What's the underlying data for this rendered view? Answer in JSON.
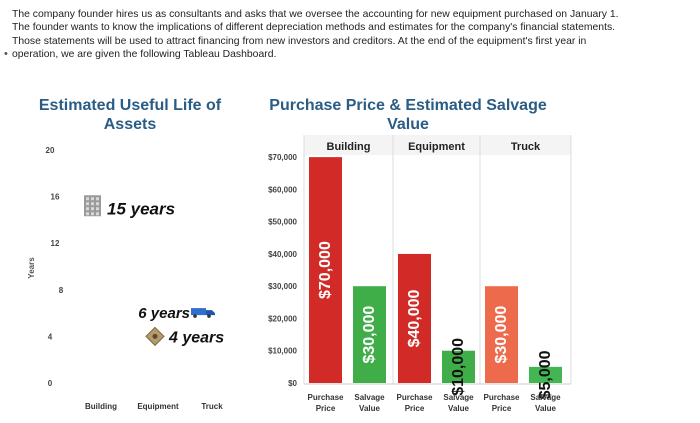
{
  "intro": {
    "lines": [
      "The company founder hires us as consultants and asks that we oversee the accounting for new equipment purchased on January 1.",
      "The founder wants to know the implications of different depreciation methods and estimates for the company's financial statements.",
      "Those statements will be used to attract financing from new investors and creditors. At the end of the equipment's first year in",
      "operation, we are given the following Tableau Dashboard."
    ]
  },
  "chart_data": [
    {
      "type": "scatter",
      "title_lines": [
        "Estimated Useful Life of",
        "Assets"
      ],
      "ylabel": "Years",
      "ylim": [
        0,
        20
      ],
      "yticks": [
        0,
        4,
        8,
        12,
        16,
        20
      ],
      "categories": [
        "Building",
        "Equipment",
        "Truck"
      ],
      "points": [
        {
          "category": "Building",
          "value": 15,
          "label": "15 years",
          "icon": "building-icon"
        },
        {
          "category": "Equipment",
          "value": 4,
          "label": "4 years",
          "icon": "equipment-icon"
        },
        {
          "category": "Truck",
          "value": 6,
          "label": "6 years",
          "icon": "truck-icon"
        }
      ]
    },
    {
      "type": "bar",
      "title_lines": [
        "Purchase Price & Estimated Salvage",
        "Value"
      ],
      "ylim": [
        0,
        75000
      ],
      "yticks": [
        {
          "value": 0,
          "label": "$0"
        },
        {
          "value": 10000,
          "label": "$10,000"
        },
        {
          "value": 20000,
          "label": "$20,000"
        },
        {
          "value": 30000,
          "label": "$30,000"
        },
        {
          "value": 40000,
          "label": "$40,000"
        },
        {
          "value": 50000,
          "label": "$50,000"
        },
        {
          "value": 60000,
          "label": "$60,000"
        },
        {
          "value": 70000,
          "label": "$70,000"
        }
      ],
      "groups": [
        {
          "name": "Building",
          "bars": [
            {
              "label_lines": [
                "Purchase",
                "Price"
              ],
              "value": 70000,
              "display": "$70,000",
              "color": "#d22b27"
            },
            {
              "label_lines": [
                "Salvage",
                "Value"
              ],
              "value": 30000,
              "display": "$30,000",
              "color": "#3fae49"
            }
          ]
        },
        {
          "name": "Equipment",
          "bars": [
            {
              "label_lines": [
                "Purchase",
                "Price"
              ],
              "value": 40000,
              "display": "$40,000",
              "color": "#d22b27"
            },
            {
              "label_lines": [
                "Salvage",
                "Value"
              ],
              "value": 10000,
              "display": "$10,000",
              "color": "#3fae49"
            }
          ]
        },
        {
          "name": "Truck",
          "bars": [
            {
              "label_lines": [
                "Purchase",
                "Price"
              ],
              "value": 30000,
              "display": "$30,000",
              "color": "#ee6a4d"
            },
            {
              "label_lines": [
                "Salvage",
                "Value"
              ],
              "value": 5000,
              "display": "$5,000",
              "color": "#44b553"
            }
          ]
        }
      ]
    }
  ]
}
